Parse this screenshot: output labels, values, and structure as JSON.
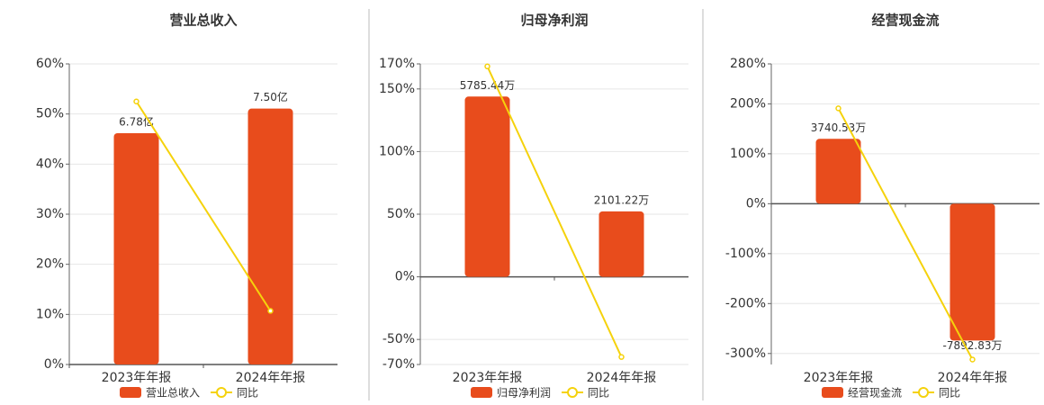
{
  "chart_data": [
    {
      "type": "bar",
      "title": "营业总收入",
      "categories": [
        "2023年年报",
        "2024年年报"
      ],
      "series": [
        {
          "name": "营业总收入",
          "color": "#e84c1c",
          "axis": "y2",
          "values": [
            6.78,
            7.5
          ],
          "value_labels": [
            "6.78亿",
            "7.50亿"
          ]
        },
        {
          "name": "同比",
          "type": "line",
          "color": "#f5d20c",
          "values": [
            52.5,
            10.7
          ]
        }
      ],
      "ylim": [
        0,
        60
      ],
      "yticks": [
        {
          "value": 0,
          "label": "0%"
        },
        {
          "value": 10,
          "label": "10%"
        },
        {
          "value": 20,
          "label": "20%"
        },
        {
          "value": 30,
          "label": "30%"
        },
        {
          "value": 40,
          "label": "40%"
        },
        {
          "value": 50,
          "label": "50%"
        },
        {
          "value": 60,
          "label": "60%"
        }
      ],
      "y2lim": [
        0,
        8.81
      ],
      "grid": true
    },
    {
      "type": "bar",
      "title": "归母净利润",
      "categories": [
        "2023年年报",
        "2024年年报"
      ],
      "series": [
        {
          "name": "归母净利润",
          "color": "#e84c1c",
          "axis": "y2",
          "values": [
            5785.44,
            2101.22
          ],
          "value_labels": [
            "5785.44万",
            "2101.22万"
          ]
        },
        {
          "name": "同比",
          "type": "line",
          "color": "#f5d20c",
          "values": [
            168,
            -64
          ]
        }
      ],
      "ylim": [
        -70,
        170
      ],
      "yticks": [
        {
          "value": -70,
          "label": "-70%"
        },
        {
          "value": -50,
          "label": "-50%"
        },
        {
          "value": 0,
          "label": "0%"
        },
        {
          "value": 50,
          "label": "50%"
        },
        {
          "value": 100,
          "label": "100%"
        },
        {
          "value": 150,
          "label": "150%"
        },
        {
          "value": 170,
          "label": "170%"
        }
      ],
      "y2lim": [
        -2814,
        6834
      ],
      "grid": true
    },
    {
      "type": "bar",
      "title": "经营现金流",
      "categories": [
        "2023年年报",
        "2024年年报"
      ],
      "series": [
        {
          "name": "经营现金流",
          "color": "#e84c1c",
          "axis": "y2",
          "values": [
            3740.53,
            -7892.83
          ],
          "value_labels": [
            "3740.53万",
            "-7892.83万"
          ]
        },
        {
          "name": "同比",
          "type": "line",
          "color": "#f5d20c",
          "values": [
            191,
            -312
          ]
        }
      ],
      "ylim": [
        -322,
        280
      ],
      "yticks": [
        {
          "value": -300,
          "label": "-300%"
        },
        {
          "value": -200,
          "label": "-200%"
        },
        {
          "value": -100,
          "label": "-100%"
        },
        {
          "value": 0,
          "label": "0%"
        },
        {
          "value": 100,
          "label": "100%"
        },
        {
          "value": 200,
          "label": "200%"
        },
        {
          "value": 280,
          "label": "280%"
        }
      ],
      "y2lim": [
        -9274,
        8064
      ],
      "grid": true
    }
  ]
}
